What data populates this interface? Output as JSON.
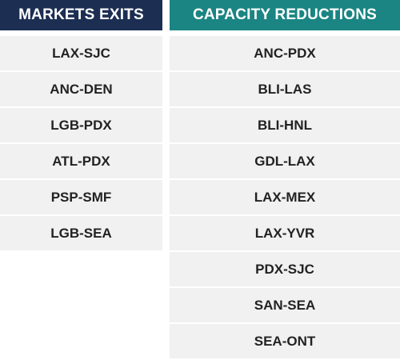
{
  "market_exits": {
    "header": "MARKETS EXITS",
    "items": [
      "LAX-SJC",
      "ANC-DEN",
      "LGB-PDX",
      "ATL-PDX",
      "PSP-SMF",
      "LGB-SEA"
    ]
  },
  "capacity_reductions": {
    "header": "CAPACITY REDUCTIONS",
    "items": [
      "ANC-PDX",
      "BLI-LAS",
      "BLI-HNL",
      "GDL-LAX",
      "LAX-MEX",
      "LAX-YVR",
      "PDX-SJC",
      "SAN-SEA",
      "SEA-ONT"
    ]
  },
  "colors": {
    "market_exits_header": "#1c2e52",
    "capacity_reductions_header": "#1a8582",
    "row_background": "#f1f1f1",
    "row_text": "#222222"
  }
}
